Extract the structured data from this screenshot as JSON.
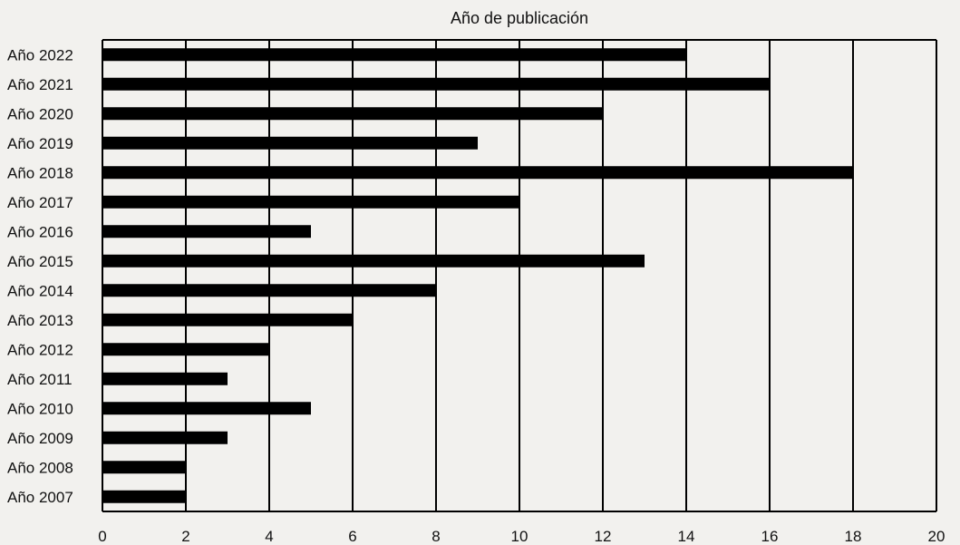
{
  "chart_data": {
    "type": "bar",
    "orientation": "horizontal",
    "title": "Año de publicación",
    "categories": [
      "Año 2022",
      "Año 2021",
      "Año 2020",
      "Año 2019",
      "Año 2018",
      "Año 2017",
      "Año 2016",
      "Año 2015",
      "Año 2014",
      "Año 2013",
      "Año 2012",
      "Año 2011",
      "Año 2010",
      "Año 2009",
      "Año 2008",
      "Año 2007"
    ],
    "values": [
      14,
      16,
      12,
      9,
      18,
      10,
      5,
      13,
      8,
      6,
      4,
      3,
      5,
      3,
      2,
      2
    ],
    "xlim": [
      0,
      20
    ],
    "xticks": [
      0,
      2,
      4,
      6,
      8,
      10,
      12,
      14,
      16,
      18,
      20
    ],
    "grid": "vertical",
    "legend": "none",
    "colors": {
      "bar": "#000000",
      "grid": "#000000",
      "background": "#f2f1ee"
    }
  }
}
